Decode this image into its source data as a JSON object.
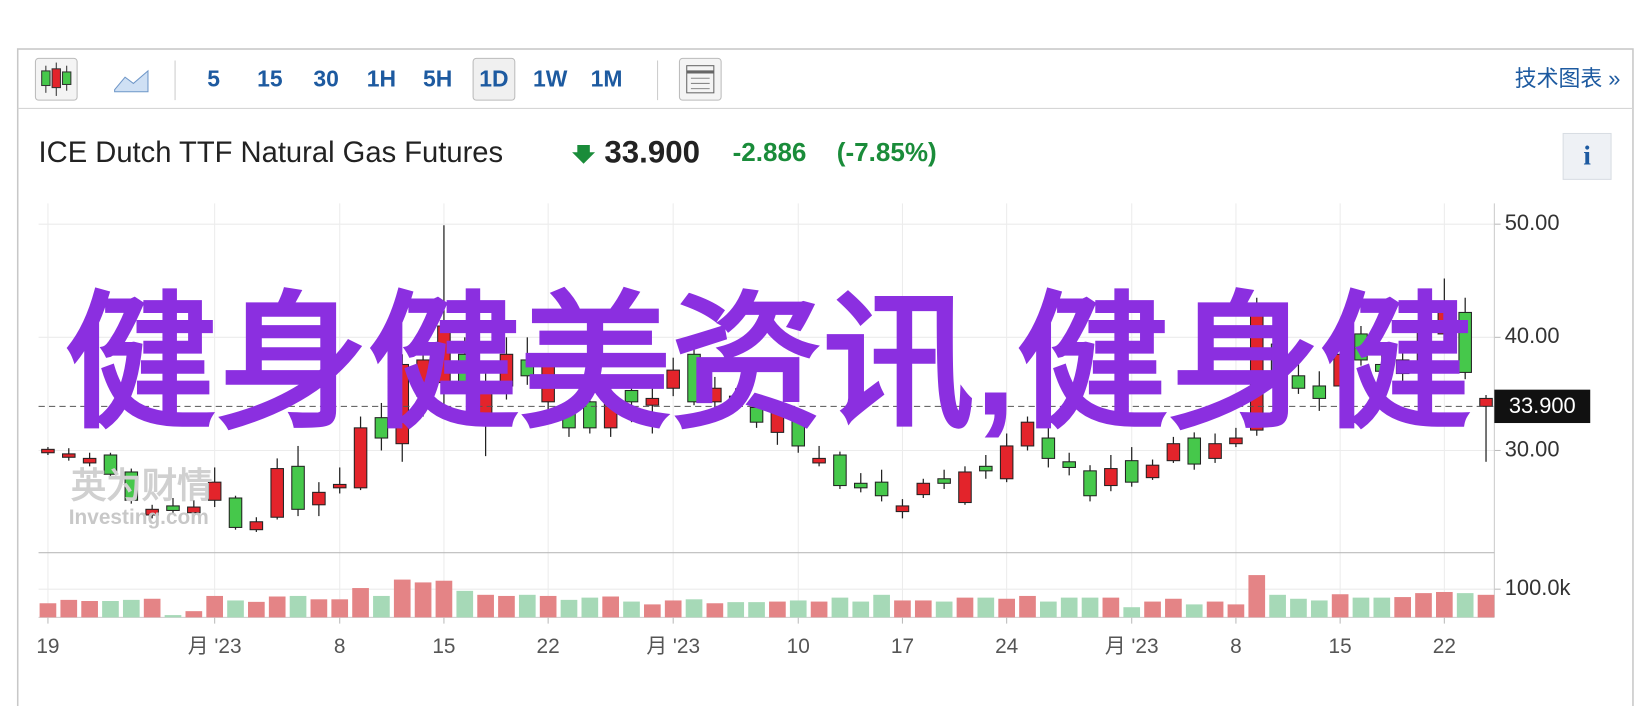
{
  "toolbar": {
    "intervals": [
      "5",
      "15",
      "30",
      "1H",
      "5H",
      "1D",
      "1W",
      "1M"
    ],
    "active_interval": "1D",
    "link": "技术图表 »"
  },
  "header": {
    "title": "ICE Dutch TTF Natural Gas Futures",
    "price": "33.900",
    "change": "-2.886",
    "change_percent": "(-7.85%)",
    "info": "i"
  },
  "logo": {
    "name": "英为财情",
    "site": "Investing.com"
  },
  "watermark": "健身健美资讯,健身健",
  "chart_data": {
    "type": "candlestick",
    "categories": [
      "19",
      null,
      null,
      null,
      null,
      null,
      null,
      null,
      "月 '23",
      null,
      null,
      null,
      null,
      null,
      "8",
      null,
      null,
      null,
      null,
      "15",
      null,
      null,
      null,
      null,
      "22",
      null,
      null,
      null,
      null,
      null,
      "月 '23",
      null,
      null,
      null,
      null,
      null,
      "10",
      null,
      null,
      null,
      null,
      "17",
      null,
      null,
      null,
      null,
      "24",
      null,
      null,
      null,
      null,
      null,
      "月 '23",
      null,
      null,
      null,
      null,
      "8",
      null,
      null,
      null,
      null,
      "15",
      null,
      null,
      null,
      null,
      "22",
      null,
      null
    ],
    "open": [
      30.1,
      29.7,
      29.3,
      27.9,
      25.6,
      24.8,
      24.7,
      25.0,
      27.2,
      23.2,
      23.7,
      28.4,
      24.8,
      26.3,
      27.0,
      32.0,
      31.1,
      37.6,
      38.0,
      41.0,
      36.0,
      35.7,
      38.5,
      36.6,
      37.6,
      32.0,
      32.0,
      34.8,
      34.3,
      34.6,
      37.1,
      34.3,
      35.5,
      34.2,
      32.5,
      33.4,
      30.4,
      29.3,
      26.9,
      26.7,
      26.0,
      25.1,
      27.1,
      27.1,
      28.1,
      28.2,
      30.4,
      32.5,
      29.3,
      28.5,
      26.0,
      28.4,
      27.2,
      28.7,
      30.6,
      28.8,
      30.6,
      31.1,
      42.2,
      36.6,
      35.5,
      34.6,
      38.5,
      38.0,
      37.0,
      38.0,
      40.7,
      43.1,
      36.9,
      34.6
    ],
    "high": [
      30.3,
      30.2,
      29.8,
      29.8,
      28.4,
      25.2,
      25.8,
      25.6,
      28.5,
      26.0,
      24.1,
      29.3,
      30.4,
      27.2,
      28.5,
      33.0,
      34.2,
      38.5,
      41.0,
      49.9,
      40.0,
      37.0,
      40.0,
      40.0,
      38.3,
      34.5,
      35.5,
      36.0,
      36.0,
      36.5,
      38.2,
      39.5,
      36.5,
      35.5,
      34.5,
      34.2,
      33.5,
      30.4,
      29.9,
      28.0,
      28.3,
      25.7,
      27.5,
      28.3,
      28.6,
      29.6,
      31.5,
      33.0,
      33.0,
      29.8,
      28.7,
      29.6,
      30.3,
      29.2,
      31.2,
      31.6,
      31.5,
      32.0,
      43.5,
      41.0,
      38.5,
      37.0,
      40.5,
      41.0,
      38.5,
      39.3,
      42.0,
      45.2,
      43.5,
      34.9
    ],
    "low": [
      29.6,
      29.1,
      28.6,
      27.6,
      25.3,
      24.0,
      24.4,
      24.2,
      25.0,
      23.0,
      22.8,
      23.9,
      24.2,
      24.2,
      26.2,
      26.5,
      30.0,
      29.0,
      33.0,
      34.0,
      35.0,
      29.5,
      34.5,
      35.8,
      33.0,
      31.2,
      31.5,
      31.2,
      32.5,
      31.5,
      34.8,
      34.0,
      33.5,
      33.5,
      32.0,
      30.5,
      29.8,
      28.6,
      26.6,
      26.3,
      25.5,
      24.0,
      25.8,
      26.6,
      25.2,
      27.5,
      27.2,
      30.0,
      28.5,
      27.8,
      25.5,
      26.4,
      26.8,
      27.4,
      28.9,
      28.3,
      28.9,
      30.3,
      31.3,
      35.5,
      35.0,
      33.5,
      35.5,
      37.5,
      36.5,
      36.0,
      37.5,
      39.5,
      36.3,
      29.0
    ],
    "close": [
      29.8,
      29.4,
      28.9,
      29.6,
      28.1,
      24.3,
      25.1,
      24.5,
      25.6,
      25.8,
      23.0,
      24.1,
      28.6,
      25.2,
      26.7,
      26.7,
      32.9,
      30.6,
      34.8,
      36.0,
      38.5,
      33.0,
      35.7,
      38.0,
      34.3,
      33.8,
      34.3,
      32.0,
      35.3,
      34.0,
      35.5,
      38.5,
      34.3,
      34.8,
      33.8,
      31.6,
      33.0,
      28.9,
      29.6,
      27.1,
      27.2,
      24.6,
      26.1,
      27.5,
      25.4,
      28.6,
      27.5,
      30.4,
      31.1,
      29.0,
      28.2,
      26.9,
      29.1,
      27.6,
      29.1,
      31.1,
      29.3,
      30.6,
      31.8,
      39.4,
      36.6,
      35.7,
      35.7,
      40.3,
      37.6,
      36.8,
      38.0,
      40.3,
      42.2,
      33.9
    ],
    "volume": [
      50000,
      62000,
      58000,
      58000,
      62000,
      66000,
      8000,
      22000,
      76000,
      60000,
      55000,
      74000,
      76000,
      64000,
      64000,
      104000,
      76000,
      134000,
      124000,
      130000,
      94000,
      80000,
      76000,
      80000,
      76000,
      62000,
      70000,
      74000,
      56000,
      46000,
      60000,
      64000,
      50000,
      54000,
      54000,
      56000,
      60000,
      56000,
      70000,
      56000,
      80000,
      60000,
      60000,
      56000,
      70000,
      70000,
      66000,
      76000,
      56000,
      70000,
      70000,
      70000,
      36000,
      56000,
      66000,
      46000,
      56000,
      46000,
      150000,
      80000,
      66000,
      60000,
      82000,
      70000,
      70000,
      72000,
      86000,
      90000,
      86000,
      80000
    ],
    "ylim": [
      21.15,
      51.84
    ],
    "yticks": [
      {
        "value": 30,
        "label": "30.00"
      },
      {
        "value": 40,
        "label": "40.00"
      },
      {
        "value": 50,
        "label": "50.00"
      }
    ],
    "volume_ylim": [
      0,
      222000
    ],
    "volume_yticks": [
      {
        "value": 100000,
        "label": "100.0k"
      }
    ],
    "last_price": {
      "value": 33.9,
      "label": "33.900"
    },
    "up_color": "#46c84b",
    "down_color": "#e3242b",
    "volume_up_color": "#a6d9b7",
    "volume_down_color": "#e48486",
    "grid": true
  }
}
